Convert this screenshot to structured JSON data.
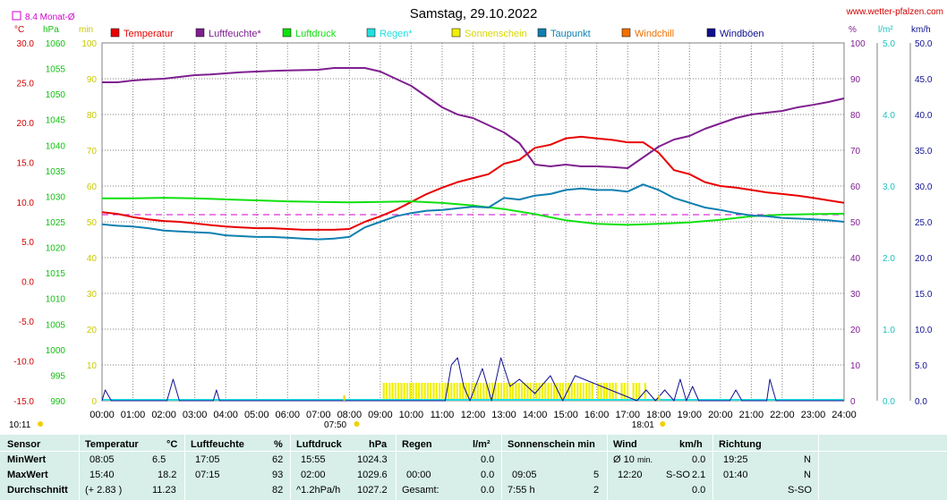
{
  "header": {
    "title": "Samstag, 29.10.2022",
    "site": "www.wetter-pfalzen.com",
    "monthly_avg_label": "8.4 Monat-Ø"
  },
  "units": {
    "temp": "°C",
    "pressure": "hPa",
    "min": "min",
    "percent": "%",
    "rain": "l/m²",
    "wind": "km/h"
  },
  "legend": [
    {
      "label": "Temperatur",
      "color": "#e80000"
    },
    {
      "label": "Luftfeuchte*",
      "color": "#7f1f8f"
    },
    {
      "label": "Luftdruck",
      "color": "#10e010"
    },
    {
      "label": "Regen*",
      "color": "#20e0e0"
    },
    {
      "label": "Sonnenschein",
      "color": "#f0f000"
    },
    {
      "label": "Taupunkt",
      "color": "#1080b0"
    },
    {
      "label": "Windchill",
      "color": "#f07000"
    },
    {
      "label": "Windböen",
      "color": "#101090"
    }
  ],
  "axes": {
    "temp_ticks": [
      "30.0",
      "25.0",
      "20.0",
      "15.0",
      "10.0",
      "5.0",
      "0.0",
      "-5.0",
      "-10.0",
      "-15.0"
    ],
    "pressure_ticks": [
      "1060",
      "1055",
      "1050",
      "1045",
      "1040",
      "1035",
      "1030",
      "1025",
      "1020",
      "1015",
      "1010",
      "1005",
      "1000",
      "995",
      "990"
    ],
    "min_ticks": [
      "100",
      "90",
      "80",
      "70",
      "60",
      "50",
      "40",
      "30",
      "20",
      "10",
      "0"
    ],
    "hum_ticks": [
      "100",
      "90",
      "80",
      "70",
      "60",
      "50",
      "40",
      "30",
      "20",
      "10",
      "0"
    ],
    "rain_ticks": [
      "5.0",
      "4.0",
      "3.0",
      "2.0",
      "1.0",
      "0.0"
    ],
    "wind_ticks": [
      "50.0",
      "45.0",
      "40.0",
      "35.0",
      "30.0",
      "25.0",
      "20.0",
      "15.0",
      "10.0",
      "5.0",
      "0.0"
    ],
    "time_ticks": [
      "00:00",
      "01:00",
      "02:00",
      "03:00",
      "04:00",
      "05:00",
      "06:00",
      "07:00",
      "08:00",
      "09:00",
      "10:00",
      "11:00",
      "12:00",
      "13:00",
      "14:00",
      "15:00",
      "16:00",
      "17:00",
      "18:00",
      "19:00",
      "20:00",
      "21:00",
      "22:00",
      "23:00",
      "24:00"
    ],
    "sunrise": "07:50",
    "sunset": "18:01",
    "daylength": "10:11"
  },
  "chart_data": {
    "type": "line",
    "x_unit": "hours",
    "xlim": [
      0,
      24
    ],
    "monthly_avg_temp": 8.4,
    "series": [
      {
        "name": "Temperatur",
        "axis": "temp",
        "ylim": [
          -15,
          30
        ],
        "x": [
          0,
          0.5,
          1,
          1.5,
          2,
          2.5,
          3,
          3.5,
          4,
          4.5,
          5,
          5.5,
          6,
          6.5,
          7,
          7.5,
          8,
          8.5,
          9,
          9.5,
          10,
          10.5,
          11,
          11.5,
          12,
          12.5,
          13,
          13.5,
          14,
          14.5,
          15,
          15.5,
          16,
          16.5,
          17,
          17.5,
          18,
          18.5,
          19,
          19.5,
          20,
          20.5,
          21,
          21.5,
          22,
          22.5,
          23,
          23.5,
          24
        ],
        "y": [
          8.7,
          8.5,
          8.1,
          7.8,
          7.6,
          7.5,
          7.3,
          7.1,
          6.9,
          6.8,
          6.7,
          6.7,
          6.6,
          6.5,
          6.5,
          6.5,
          6.6,
          7.5,
          8.2,
          9.0,
          10.0,
          11.0,
          11.8,
          12.5,
          13.0,
          13.5,
          14.8,
          15.3,
          16.8,
          17.2,
          18.0,
          18.2,
          18.0,
          17.8,
          17.5,
          17.5,
          16.2,
          14.0,
          13.5,
          12.5,
          12.0,
          11.8,
          11.5,
          11.2,
          11.0,
          10.8,
          10.5,
          10.2,
          9.9
        ]
      },
      {
        "name": "Luftfeuchte*",
        "axis": "hum",
        "ylim": [
          0,
          100
        ],
        "x": [
          0,
          0.5,
          1,
          1.5,
          2,
          2.5,
          3,
          3.5,
          4,
          4.5,
          5,
          5.5,
          6,
          6.5,
          7,
          7.5,
          8,
          8.5,
          9,
          9.5,
          10,
          10.5,
          11,
          11.5,
          12,
          12.5,
          13,
          13.5,
          14,
          14.5,
          15,
          15.5,
          16,
          16.5,
          17,
          17.5,
          18,
          18.5,
          19,
          19.5,
          20,
          20.5,
          21,
          21.5,
          22,
          22.5,
          23,
          23.5,
          24
        ],
        "y": [
          89,
          89,
          89.5,
          89.8,
          90,
          90.5,
          91,
          91.2,
          91.5,
          91.8,
          92,
          92.2,
          92.3,
          92.4,
          92.5,
          93,
          93,
          93,
          92,
          90,
          88,
          85,
          82,
          80,
          79,
          77,
          75,
          72,
          66,
          65.5,
          66,
          65.5,
          65.5,
          65.3,
          65,
          68,
          71,
          73,
          74,
          76,
          77.5,
          79,
          80,
          80.5,
          81,
          82,
          82.7,
          83.5,
          84.5
        ]
      },
      {
        "name": "Luftdruck",
        "axis": "pressure",
        "ylim": [
          990,
          1060
        ],
        "x": [
          0,
          1,
          2,
          3,
          4,
          5,
          6,
          7,
          8,
          9,
          10,
          11,
          12,
          13,
          14,
          15,
          16,
          17,
          18,
          19,
          20,
          21,
          22,
          23,
          24
        ],
        "y": [
          1029.6,
          1029.6,
          1029.7,
          1029.6,
          1029.4,
          1029.2,
          1029.0,
          1028.9,
          1028.8,
          1028.9,
          1029.0,
          1028.7,
          1028.2,
          1027.5,
          1026.5,
          1025.3,
          1024.6,
          1024.4,
          1024.6,
          1024.9,
          1025.4,
          1026.1,
          1026.4,
          1026.5,
          1026.6
        ]
      },
      {
        "name": "Taupunkt",
        "axis": "temp",
        "ylim": [
          -15,
          30
        ],
        "x": [
          0,
          0.5,
          1,
          1.5,
          2,
          2.5,
          3,
          3.5,
          4,
          4.5,
          5,
          5.5,
          6,
          6.5,
          7,
          7.5,
          8,
          8.5,
          9,
          9.5,
          10,
          10.5,
          11,
          11.5,
          12,
          12.5,
          13,
          13.5,
          14,
          14.5,
          15,
          15.5,
          16,
          16.5,
          17,
          17.5,
          18,
          18.5,
          19,
          19.5,
          20,
          20.5,
          21,
          21.5,
          22,
          22.5,
          23,
          23.5,
          24
        ],
        "y": [
          7.2,
          7.0,
          6.9,
          6.7,
          6.4,
          6.3,
          6.2,
          6.1,
          5.8,
          5.7,
          5.6,
          5.6,
          5.5,
          5.4,
          5.3,
          5.4,
          5.6,
          6.8,
          7.5,
          8.2,
          8.6,
          8.9,
          9.0,
          9.2,
          9.4,
          9.3,
          10.5,
          10.3,
          10.8,
          11.0,
          11.5,
          11.7,
          11.5,
          11.5,
          11.3,
          12.2,
          11.5,
          10.5,
          9.9,
          9.3,
          9.0,
          8.6,
          8.3,
          8.2,
          8.0,
          7.9,
          7.8,
          7.7,
          7.5
        ]
      },
      {
        "name": "Windböen",
        "axis": "wind",
        "ylim": [
          0,
          50
        ],
        "x": [
          0,
          0.1,
          0.3,
          2.1,
          2.3,
          2.5,
          3.6,
          3.7,
          3.8,
          11.1,
          11.3,
          11.5,
          11.7,
          11.9,
          12.3,
          12.6,
          12.9,
          13.2,
          13.5,
          14,
          14.5,
          14.9,
          15.3,
          17.3,
          17.6,
          17.9,
          18.2,
          18.5,
          18.7,
          18.9,
          19.1,
          19.3,
          20.3,
          20.5,
          20.7,
          21.5,
          21.6,
          21.8,
          24
        ],
        "y": [
          0,
          1.5,
          0,
          0,
          3,
          0,
          0,
          1.5,
          0,
          0,
          5,
          6,
          2,
          0,
          4.5,
          0,
          6,
          2,
          3,
          1,
          3.5,
          0,
          3.5,
          0,
          1.5,
          0,
          1.5,
          0,
          3,
          0,
          2,
          0,
          0,
          1.5,
          0,
          0,
          3,
          0,
          0
        ]
      }
    ],
    "sunshine": {
      "start": 9.08,
      "end": 17.6,
      "color": "#f0f000"
    }
  },
  "stats": {
    "headers": [
      "Sensor",
      "Temperatur",
      "°C",
      "Luftfeuchte",
      "%",
      "Luftdruck",
      "hPa",
      "Regen",
      "l/m²",
      "Sonnenschein min",
      "Wind",
      "km/h",
      "Richtung"
    ],
    "min": {
      "label": "MinWert",
      "t_time": "08:05",
      "t_val": "6.5",
      "h_time": "17:05",
      "h_val": "62",
      "p_time": "15:55",
      "p_val": "1024.3",
      "r_val": "0.0",
      "s_time": "",
      "s_val": "",
      "w_label": "Ø 10",
      "w_sub": "min.",
      "w_val": "0.0",
      "d_time": "19:25",
      "d_val": "N"
    },
    "max": {
      "label": "MaxWert",
      "t_time": "15:40",
      "t_val": "18.2",
      "h_time": "07:15",
      "h_val": "93",
      "p_time": "02:00",
      "p_val": "1029.6",
      "r_time": "00:00",
      "r_val": "0.0",
      "s_time": "09:05",
      "s_val": "5",
      "w_time": "12:20",
      "w_dir": "S-SO",
      "w_val": "2.1",
      "d_time": "01:40",
      "d_val": "N"
    },
    "avg": {
      "label": "Durchschnitt",
      "t_time": "(+ 2.83 )",
      "t_val": "11.23",
      "h_val": "82",
      "p_time": "^1.2hPa/h",
      "p_val": "1027.2",
      "r_label": "Gesamt:",
      "r_val": "0.0",
      "s_time": "7:55 h",
      "s_val": "2",
      "w_val": "0.0",
      "d_val": "S-SO"
    }
  }
}
